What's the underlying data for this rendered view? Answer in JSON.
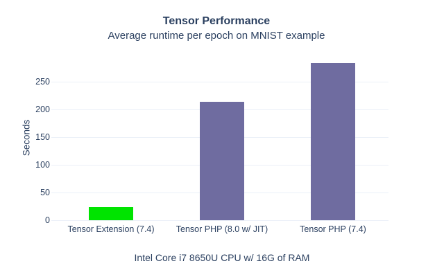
{
  "chart_data": {
    "type": "bar",
    "title": "Tensor Performance",
    "subtitle": "Average runtime per epoch on MNIST example",
    "xlabel": "Intel Core i7 8650U CPU w/ 16G of RAM",
    "ylabel": "Seconds",
    "categories": [
      "Tensor Extension (7.4)",
      "Tensor PHP (8.0 w/ JIT)",
      "Tensor PHP (7.4)"
    ],
    "values": [
      24,
      214,
      284
    ],
    "bar_colors": [
      "#00e400",
      "#6f6ca0",
      "#6f6ca0"
    ],
    "ylim": [
      0,
      298
    ],
    "yticks": [
      0,
      50,
      100,
      150,
      200,
      250
    ],
    "grid": true,
    "legend": "none",
    "colors": {
      "text": "#2a3f5f",
      "grid": "#ebf0f8",
      "background": "#ffffff"
    }
  }
}
